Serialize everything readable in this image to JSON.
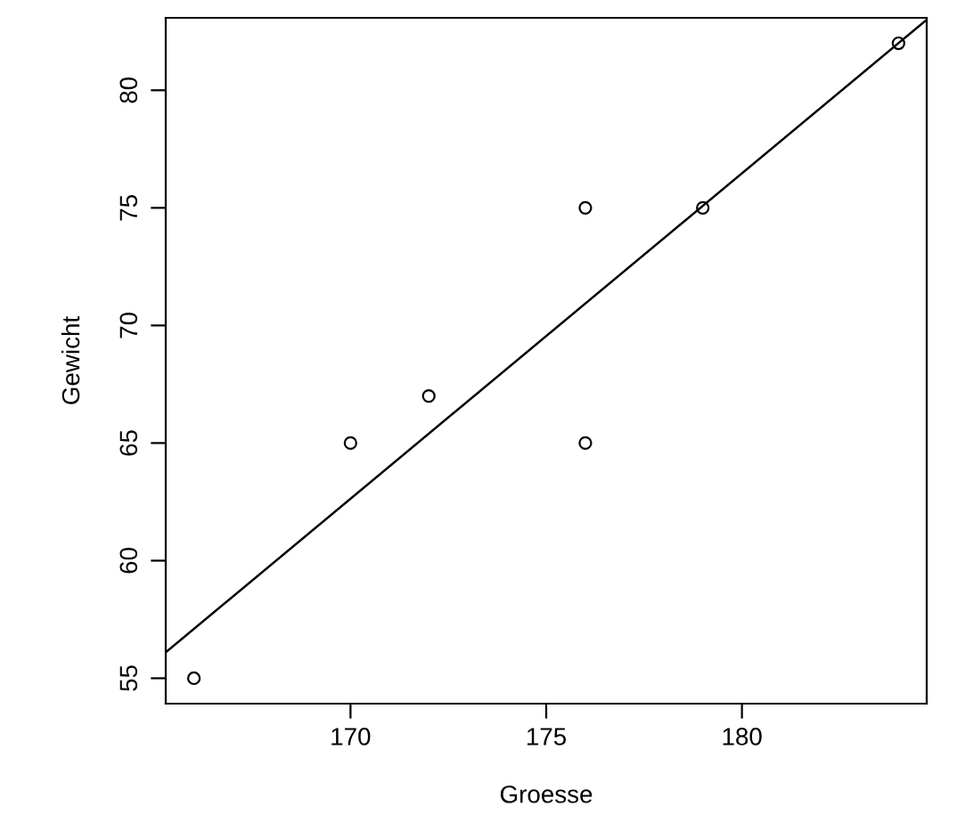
{
  "chart_data": {
    "type": "scatter",
    "xlabel": "Groesse",
    "ylabel": "Gewicht",
    "x": [
      166,
      170,
      172,
      176,
      176,
      179,
      184
    ],
    "series": [
      {
        "color": "#000000",
        "marker": "circle",
        "values": [
          55,
          65,
          67,
          75,
          65,
          75,
          82
        ]
      },
      {
        "type": "line",
        "color": "#000000",
        "line_style": "solid",
        "x": [
          165.28,
          184.72
        ],
        "values": [
          56.1,
          83.0
        ]
      }
    ],
    "xlim": [
      165.28,
      184.72
    ],
    "ylim": [
      53.92,
      83.08
    ],
    "xticks": [
      170,
      175,
      180
    ],
    "yticks": [
      55,
      60,
      65,
      70,
      75,
      80
    ],
    "grid": false,
    "legend": false
  }
}
